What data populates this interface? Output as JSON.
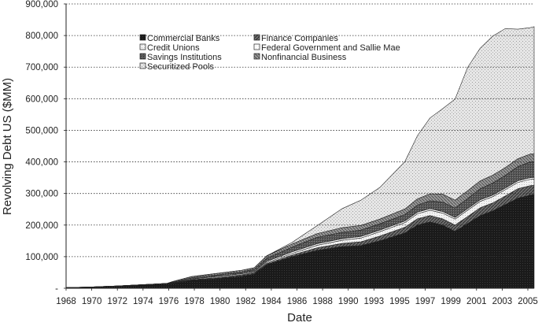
{
  "chart_data": {
    "type": "area",
    "stacked": true,
    "xlabel": "Date",
    "ylabel": "Revolving Debt US ($MM)",
    "ylim": [
      0,
      900000
    ],
    "xlim": [
      1968,
      2005.3
    ],
    "grid": "horizontal dotted",
    "y_ticks": [
      0,
      100000,
      200000,
      300000,
      400000,
      500000,
      600000,
      700000,
      800000,
      900000
    ],
    "y_tick_labels": [
      "-",
      "100,000",
      "200,000",
      "300,000",
      "400,000",
      "500,000",
      "600,000",
      "700,000",
      "800,000",
      "900,000"
    ],
    "x_ticks": [
      1968,
      1970,
      1972,
      1974,
      1976,
      1978,
      1980,
      1982,
      1984,
      1986,
      1988,
      1990,
      1993,
      1995,
      1997,
      1999,
      2001,
      2003,
      2005
    ],
    "x_tick_labels": [
      "1968",
      "1970",
      "1972",
      "1974",
      "1976",
      "1978",
      "1980",
      "1982",
      "1984",
      "1986",
      "1988",
      "1990",
      "1993",
      "1995",
      "1997",
      "1999",
      "2001",
      "2003",
      "2005"
    ],
    "legend_placement": "top-left inside",
    "legend": [
      "Commercial Banks",
      "Finance Companies",
      "Credit Unions",
      "Federal Government and Sallie Mae",
      "Savings Institutions",
      "Nonfinancial Business",
      "Securitized Pools"
    ],
    "x": [
      1968,
      1970,
      1972,
      1974,
      1976,
      1976.5,
      1978,
      1980,
      1982,
      1983,
      1984,
      1986,
      1988,
      1990,
      1991.5,
      1993,
      1995,
      1996,
      1997,
      1998,
      1999,
      2000,
      2001,
      2002,
      2003,
      2004,
      2005,
      2005.3
    ],
    "series": [
      {
        "name": "Commercial Banks",
        "values": [
          2000,
          4000,
          7000,
          11000,
          15000,
          15000,
          25000,
          30000,
          38000,
          45000,
          75000,
          100000,
          120000,
          132000,
          135000,
          150000,
          175000,
          200000,
          210000,
          200000,
          180000,
          205000,
          230000,
          245000,
          265000,
          285000,
          295000,
          296000
        ]
      },
      {
        "name": "Finance Companies",
        "values": [
          0,
          0,
          0,
          0,
          0,
          1000,
          1000,
          2000,
          3000,
          3000,
          3000,
          5000,
          8000,
          10000,
          12000,
          15000,
          18000,
          20000,
          20000,
          20000,
          20000,
          22000,
          25000,
          25000,
          27000,
          30000,
          30000,
          30000
        ]
      },
      {
        "name": "Credit Unions",
        "values": [
          0,
          0,
          0,
          0,
          0,
          500,
          1000,
          2000,
          2000,
          2000,
          3000,
          5000,
          8000,
          10000,
          12000,
          14000,
          15000,
          16000,
          17000,
          18000,
          19000,
          20000,
          20000,
          20000,
          20000,
          20000,
          20000,
          20000
        ]
      },
      {
        "name": "Federal Government and Sallie Mae",
        "values": [
          0,
          0,
          0,
          0,
          0,
          1000,
          2000,
          3000,
          3000,
          3000,
          4000,
          5000,
          5000,
          5000,
          5000,
          5000,
          5000,
          5000,
          5000,
          5000,
          5000,
          5000,
          5000,
          5000,
          5000,
          5000,
          5000,
          5000
        ]
      },
      {
        "name": "Savings Institutions",
        "values": [
          0,
          0,
          0,
          0,
          0,
          2000,
          4000,
          5000,
          6000,
          7000,
          10000,
          15000,
          20000,
          20000,
          20000,
          20000,
          20000,
          22000,
          25000,
          30000,
          30000,
          32000,
          35000,
          38000,
          40000,
          45000,
          50000,
          50000
        ]
      },
      {
        "name": "Nonfinancial Business",
        "values": [
          0,
          0,
          0,
          0,
          0,
          2000,
          4000,
          5000,
          5000,
          5000,
          8000,
          10000,
          12000,
          15000,
          15000,
          15000,
          18000,
          20000,
          22000,
          25000,
          25000,
          25000,
          25000,
          25000,
          25000,
          25000,
          25000,
          25000
        ]
      },
      {
        "name": "Securitized Pools",
        "values": [
          0,
          0,
          0,
          0,
          0,
          0,
          0,
          0,
          0,
          0,
          0,
          5000,
          25000,
          60000,
          80000,
          100000,
          150000,
          200000,
          240000,
          270000,
          320000,
          390000,
          420000,
          440000,
          440000,
          410000,
          400000,
          402000
        ]
      }
    ]
  }
}
